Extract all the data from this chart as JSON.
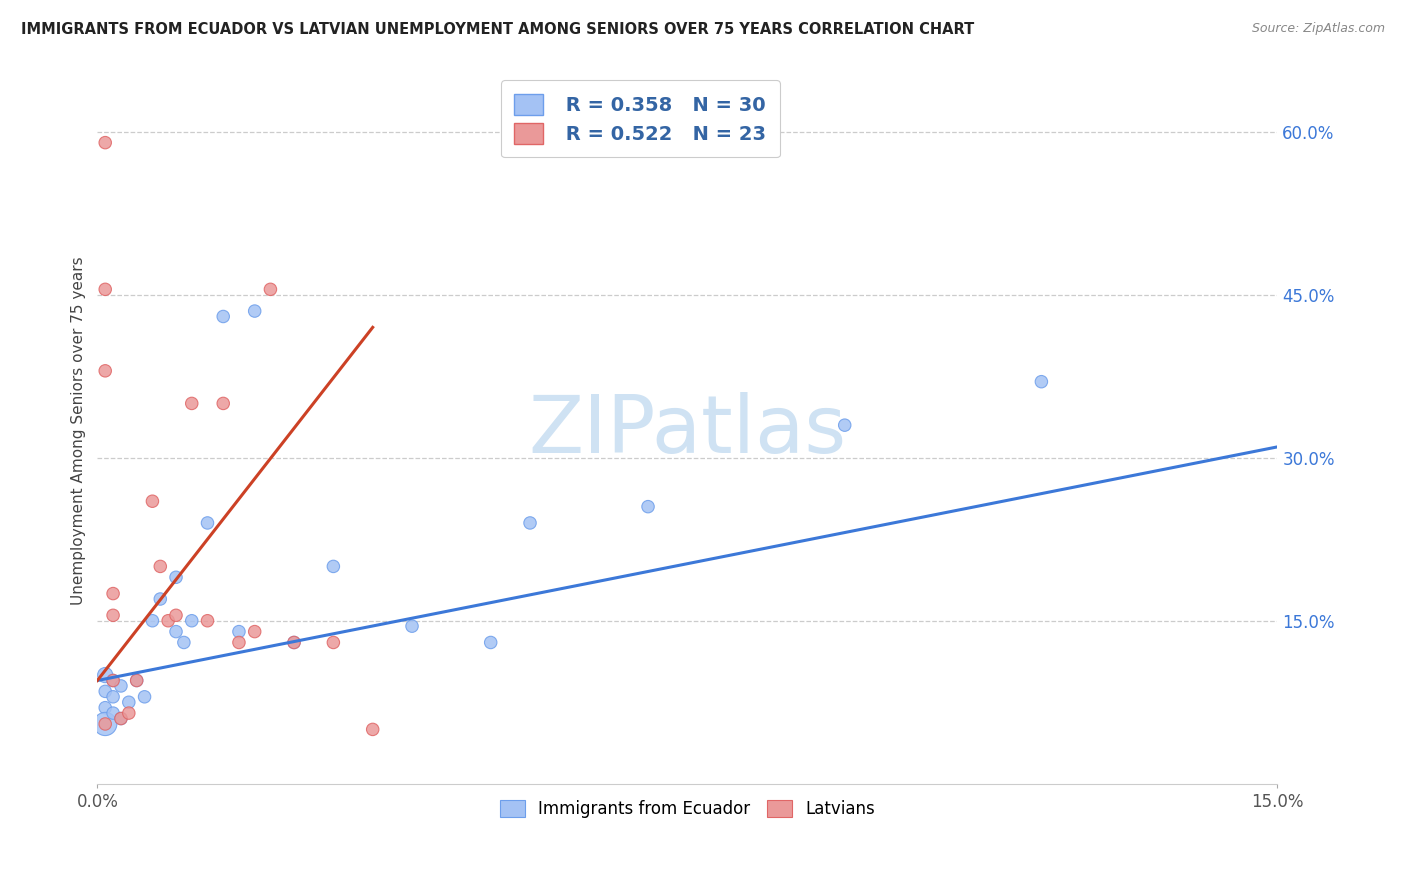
{
  "title": "IMMIGRANTS FROM ECUADOR VS LATVIAN UNEMPLOYMENT AMONG SENIORS OVER 75 YEARS CORRELATION CHART",
  "source": "Source: ZipAtlas.com",
  "ylabel": "Unemployment Among Seniors over 75 years",
  "xlim": [
    0.0,
    0.15
  ],
  "ylim": [
    0.0,
    0.65
  ],
  "ytick_labels": [
    "15.0%",
    "30.0%",
    "45.0%",
    "60.0%"
  ],
  "ytick_values": [
    0.15,
    0.3,
    0.45,
    0.6
  ],
  "r1": 0.358,
  "n1": 30,
  "r2": 0.522,
  "n2": 23,
  "blue_color": "#a4c2f4",
  "blue_edge_color": "#6d9eeb",
  "pink_color": "#ea9999",
  "pink_edge_color": "#e06666",
  "blue_line_color": "#3c78d8",
  "pink_line_color": "#cc4125",
  "watermark_color": "#cfe2f3",
  "title_color": "#222222",
  "source_color": "#888888",
  "axis_label_color": "#444444",
  "legend_text_color": "#3465a4",
  "blue_scatter_x": [
    0.001,
    0.001,
    0.001,
    0.001,
    0.002,
    0.002,
    0.002,
    0.003,
    0.003,
    0.004,
    0.005,
    0.006,
    0.007,
    0.008,
    0.01,
    0.01,
    0.011,
    0.012,
    0.014,
    0.016,
    0.018,
    0.02,
    0.025,
    0.03,
    0.04,
    0.05,
    0.055,
    0.07,
    0.095,
    0.12
  ],
  "blue_scatter_y": [
    0.1,
    0.085,
    0.07,
    0.055,
    0.095,
    0.08,
    0.065,
    0.09,
    0.06,
    0.075,
    0.095,
    0.08,
    0.15,
    0.17,
    0.14,
    0.19,
    0.13,
    0.15,
    0.24,
    0.43,
    0.14,
    0.435,
    0.13,
    0.2,
    0.145,
    0.13,
    0.24,
    0.255,
    0.33,
    0.37
  ],
  "blue_scatter_size": [
    120,
    80,
    80,
    280,
    80,
    80,
    80,
    80,
    80,
    80,
    80,
    80,
    80,
    80,
    80,
    80,
    80,
    80,
    80,
    80,
    80,
    80,
    80,
    80,
    80,
    80,
    80,
    80,
    80,
    80
  ],
  "pink_scatter_x": [
    0.001,
    0.001,
    0.001,
    0.001,
    0.002,
    0.002,
    0.002,
    0.003,
    0.004,
    0.005,
    0.007,
    0.008,
    0.009,
    0.01,
    0.012,
    0.014,
    0.016,
    0.018,
    0.02,
    0.022,
    0.025,
    0.03,
    0.035
  ],
  "pink_scatter_y": [
    0.59,
    0.455,
    0.38,
    0.055,
    0.175,
    0.155,
    0.095,
    0.06,
    0.065,
    0.095,
    0.26,
    0.2,
    0.15,
    0.155,
    0.35,
    0.15,
    0.35,
    0.13,
    0.14,
    0.455,
    0.13,
    0.13,
    0.05
  ],
  "pink_scatter_size": [
    80,
    80,
    80,
    80,
    80,
    80,
    80,
    80,
    80,
    80,
    80,
    80,
    80,
    80,
    80,
    80,
    80,
    80,
    80,
    80,
    80,
    80,
    80
  ],
  "blue_line_x": [
    0.0,
    0.15
  ],
  "blue_line_y": [
    0.095,
    0.31
  ],
  "pink_line_x": [
    0.0,
    0.035
  ],
  "pink_line_y": [
    0.095,
    0.42
  ]
}
